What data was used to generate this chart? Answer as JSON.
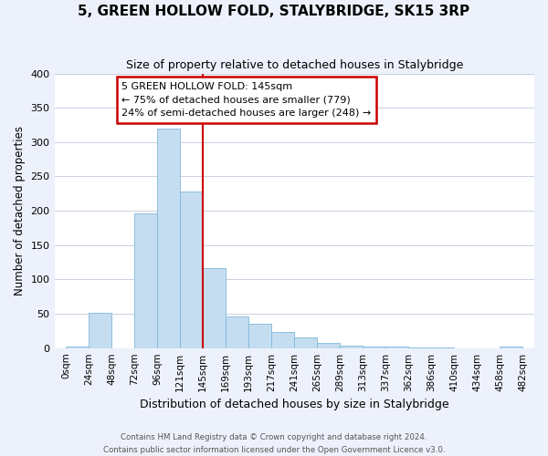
{
  "title": "5, GREEN HOLLOW FOLD, STALYBRIDGE, SK15 3RP",
  "subtitle": "Size of property relative to detached houses in Stalybridge",
  "xlabel": "Distribution of detached houses by size in Stalybridge",
  "ylabel": "Number of detached properties",
  "tick_labels": [
    "0sqm",
    "24sqm",
    "48sqm",
    "72sqm",
    "96sqm",
    "121sqm",
    "145sqm",
    "169sqm",
    "193sqm",
    "217sqm",
    "241sqm",
    "265sqm",
    "289sqm",
    "313sqm",
    "337sqm",
    "362sqm",
    "386sqm",
    "410sqm",
    "434sqm",
    "458sqm",
    "482sqm"
  ],
  "bar_values": [
    2,
    52,
    0,
    196,
    320,
    228,
    116,
    46,
    35,
    24,
    15,
    7,
    3,
    2,
    2,
    1,
    1,
    0,
    0,
    2
  ],
  "bar_color": "#c5ddf0",
  "bar_edge_color": "#7fb8da",
  "highlight_line_color": "#cc0000",
  "highlight_bar_index": 6,
  "ylim": [
    0,
    400
  ],
  "yticks": [
    0,
    50,
    100,
    150,
    200,
    250,
    300,
    350,
    400
  ],
  "annotation_text_line1": "5 GREEN HOLLOW FOLD: 145sqm",
  "annotation_text_line2": "← 75% of detached houses are smaller (779)",
  "annotation_text_line3": "24% of semi-detached houses are larger (248) →",
  "footer_line1": "Contains HM Land Registry data © Crown copyright and database right 2024.",
  "footer_line2": "Contains public sector information licensed under the Open Government Licence v3.0.",
  "background_color": "#edf1fb",
  "plot_bg_color": "#ffffff",
  "grid_color": "#c8d0e0"
}
